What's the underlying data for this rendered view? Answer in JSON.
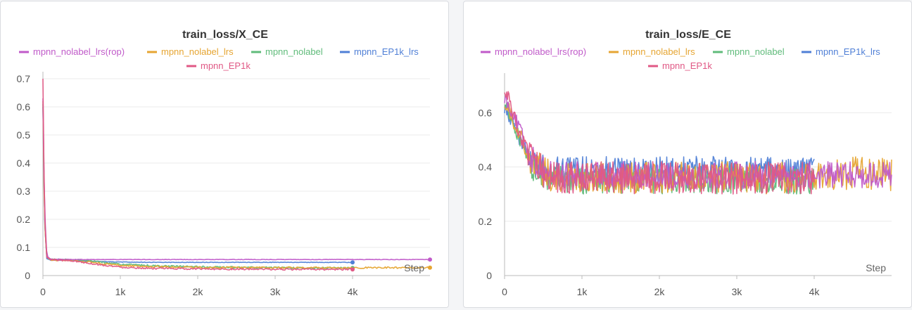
{
  "chart_data": [
    {
      "type": "line",
      "title": "train_loss/X_CE",
      "xlabel": "Step",
      "ylabel": "",
      "xlim": [
        0,
        5000
      ],
      "ylim": [
        0,
        0.7
      ],
      "xticks": [
        0,
        1000,
        2000,
        3000,
        4000
      ],
      "xtick_labels": [
        "0",
        "1k",
        "2k",
        "3k",
        "4k"
      ],
      "yticks": [
        0,
        0.1,
        0.2,
        0.3,
        0.4,
        0.5,
        0.6,
        0.7
      ],
      "ytick_labels": [
        "0",
        "0.1",
        "0.2",
        "0.3",
        "0.4",
        "0.5",
        "0.6",
        "0.7"
      ],
      "grid": true,
      "legend_position": "top",
      "series": [
        {
          "name": "mpnn_nolabel_lrs(rop)",
          "color": "#c05ac9",
          "x": [
            0,
            20,
            50,
            100,
            500,
            1000,
            2000,
            3000,
            4000,
            5000
          ],
          "y": [
            0.63,
            0.25,
            0.07,
            0.058,
            0.057,
            0.057,
            0.057,
            0.057,
            0.057,
            0.057
          ]
        },
        {
          "name": "mpnn_nolabel_lrs",
          "color": "#e6a532",
          "x": [
            0,
            20,
            50,
            100,
            400,
            700,
            1000,
            1500,
            2000,
            2500,
            3000,
            3500,
            4000,
            4500,
            5000
          ],
          "y": [
            0.62,
            0.2,
            0.065,
            0.055,
            0.054,
            0.045,
            0.036,
            0.031,
            0.029,
            0.028,
            0.028,
            0.028,
            0.028,
            0.028,
            0.028
          ]
        },
        {
          "name": "mpnn_nolabel",
          "color": "#5fbb7a",
          "x": [
            0,
            20,
            50,
            100,
            400,
            700,
            1000,
            1500,
            2000,
            2500,
            3000,
            3500,
            4000
          ],
          "y": [
            0.61,
            0.2,
            0.065,
            0.057,
            0.056,
            0.05,
            0.04,
            0.034,
            0.031,
            0.029,
            0.028,
            0.027,
            0.027
          ]
        },
        {
          "name": "mpnn_EP1k_lrs",
          "color": "#4f7fd6",
          "x": [
            0,
            20,
            50,
            100,
            400,
            700,
            1000,
            1500,
            2000,
            2500,
            3000,
            3500,
            4000
          ],
          "y": [
            0.6,
            0.2,
            0.06,
            0.055,
            0.054,
            0.05,
            0.048,
            0.047,
            0.047,
            0.047,
            0.047,
            0.047,
            0.047
          ]
        },
        {
          "name": "mpnn_EP1k",
          "color": "#e05885",
          "x": [
            0,
            20,
            50,
            100,
            400,
            700,
            1000,
            1500,
            2000,
            2500,
            3000,
            3500,
            4000
          ],
          "y": [
            0.7,
            0.22,
            0.065,
            0.057,
            0.052,
            0.04,
            0.03,
            0.025,
            0.024,
            0.023,
            0.022,
            0.022,
            0.022
          ]
        }
      ]
    },
    {
      "type": "line",
      "title": "train_loss/E_CE",
      "xlabel": "Step",
      "ylabel": "",
      "xlim": [
        0,
        5000
      ],
      "ylim": [
        0,
        0.72
      ],
      "xticks": [
        0,
        1000,
        2000,
        3000,
        4000
      ],
      "xtick_labels": [
        "0",
        "1k",
        "2k",
        "3k",
        "4k"
      ],
      "yticks": [
        0,
        0.2,
        0.4,
        0.6
      ],
      "ytick_labels": [
        "0",
        "0.2",
        "0.4",
        "0.6"
      ],
      "grid": true,
      "legend_position": "top",
      "series": [
        {
          "name": "mpnn_nolabel_lrs(rop)",
          "color": "#c05ac9",
          "x": [
            0,
            100,
            200,
            300,
            400,
            600,
            800,
            1000,
            1500,
            2000,
            2500,
            3000,
            3500,
            4000,
            4500,
            5000
          ],
          "y": [
            0.66,
            0.6,
            0.54,
            0.46,
            0.41,
            0.38,
            0.37,
            0.37,
            0.37,
            0.37,
            0.37,
            0.37,
            0.37,
            0.37,
            0.37,
            0.37
          ],
          "spread": 0.05
        },
        {
          "name": "mpnn_nolabel_lrs",
          "color": "#e6a532",
          "x": [
            0,
            100,
            200,
            300,
            400,
            600,
            800,
            1000,
            1500,
            2000,
            2500,
            3000,
            3500,
            4000,
            4500,
            5000
          ],
          "y": [
            0.65,
            0.58,
            0.52,
            0.45,
            0.4,
            0.37,
            0.36,
            0.36,
            0.36,
            0.36,
            0.36,
            0.36,
            0.36,
            0.36,
            0.38,
            0.37
          ],
          "spread": 0.06
        },
        {
          "name": "mpnn_nolabel",
          "color": "#5fbb7a",
          "x": [
            0,
            100,
            200,
            300,
            400,
            600,
            800,
            1000,
            1500,
            2000,
            2500,
            3000,
            3500,
            4000
          ],
          "y": [
            0.64,
            0.57,
            0.5,
            0.43,
            0.38,
            0.36,
            0.35,
            0.35,
            0.35,
            0.35,
            0.35,
            0.35,
            0.35,
            0.35
          ],
          "spread": 0.05
        },
        {
          "name": "mpnn_EP1k_lrs",
          "color": "#4f7fd6",
          "x": [
            0,
            100,
            200,
            300,
            400,
            600,
            800,
            1000,
            1500,
            2000,
            2500,
            3000,
            3500,
            4000
          ],
          "y": [
            0.62,
            0.57,
            0.5,
            0.45,
            0.41,
            0.39,
            0.39,
            0.39,
            0.39,
            0.39,
            0.39,
            0.39,
            0.39,
            0.39
          ],
          "spread": 0.05
        },
        {
          "name": "mpnn_EP1k",
          "color": "#e05885",
          "x": [
            0,
            100,
            200,
            300,
            400,
            600,
            800,
            1000,
            1500,
            2000,
            2500,
            3000,
            3500,
            4000
          ],
          "y": [
            0.7,
            0.6,
            0.52,
            0.45,
            0.4,
            0.37,
            0.36,
            0.36,
            0.36,
            0.36,
            0.36,
            0.36,
            0.36,
            0.36
          ],
          "spread": 0.06
        }
      ]
    }
  ]
}
